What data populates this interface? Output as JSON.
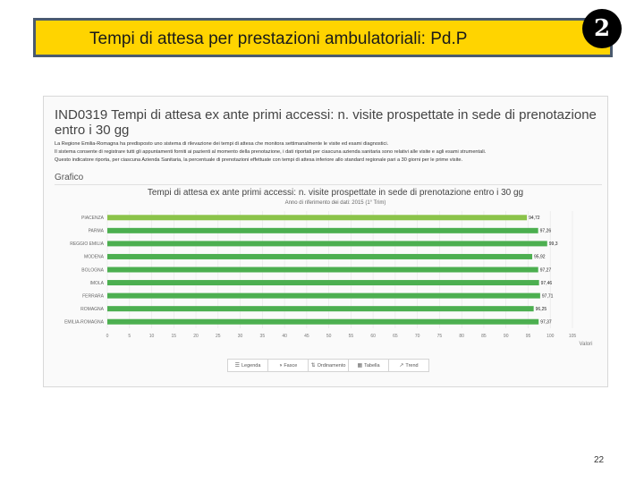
{
  "slide": {
    "title": "Tempi di attesa per prestazioni ambulatoriali: Pd.P",
    "badge": "2",
    "page_number": "22"
  },
  "report": {
    "indicator_title": "IND0319 Tempi di attesa ex ante primi accessi: n. visite prospettate in sede di prenotazione entro i 30 gg",
    "description_lines": [
      "La Regione Emilia-Romagna ha predisposto uno sistema di rilevazione dei tempi di attesa che monitora settimanalmente le visite ed esami diagnostici.",
      "Il sistema consente di registrare tutti gli appuntamenti forniti ai pazienti al momento della prenotazione, i dati riportati per ciascuna azienda sanitaria sono relativi alle visite e agli esami strumentali.",
      "Questo indicatore riporta, per ciascuna Azienda Sanitaria, la percentuale di prenotazioni effettuate con tempi di attesa inferiore allo standard regionale pari a 30 giorni per le prime visite."
    ],
    "section_label": "Grafico"
  },
  "chart_data": {
    "type": "bar",
    "orientation": "horizontal",
    "title": "Tempi di attesa ex ante primi accessi: n. visite prospettate in sede di prenotazione entro i 30 gg",
    "subtitle": "Anno di riferimento dei dati: 2015 (1° Trim)",
    "categories": [
      "PIACENZA",
      "PARMA",
      "REGGIO EMILIA",
      "MODENA",
      "BOLOGNA",
      "IMOLA",
      "FERRARA",
      "ROMAGNA",
      "EMILIA-ROMAGNA"
    ],
    "values": [
      94.72,
      97.26,
      99.3,
      95.92,
      97.27,
      97.46,
      97.71,
      96.25,
      97.37
    ],
    "value_labels": [
      "94,72",
      "97,26",
      "99,3",
      "95,92",
      "97,27",
      "97,46",
      "97,71",
      "96,25",
      "97,37"
    ],
    "highlight_index": 0,
    "x_ticks": [
      0,
      5,
      10,
      15,
      20,
      25,
      30,
      35,
      40,
      45,
      50,
      55,
      60,
      65,
      70,
      75,
      80,
      85,
      90,
      95,
      100,
      105
    ],
    "xlim": [
      0,
      105
    ],
    "xlabel": "Valori",
    "colors": {
      "bar": "#4caf50",
      "highlight": "#8bc34a",
      "grid": "#e6e6e6"
    },
    "legend_placement": "bottom"
  },
  "toolbar": {
    "items": [
      {
        "icon": "list-icon",
        "glyph": "☰",
        "label": "Legenda"
      },
      {
        "icon": "pie-icon",
        "glyph": "◑",
        "label": "Fasce"
      },
      {
        "icon": "sort-icon",
        "glyph": "⇅",
        "label": "Ordinamento"
      },
      {
        "icon": "table-icon",
        "glyph": "▦",
        "label": "Tabella"
      },
      {
        "icon": "trend-icon",
        "glyph": "↗",
        "label": "Trend"
      }
    ]
  }
}
